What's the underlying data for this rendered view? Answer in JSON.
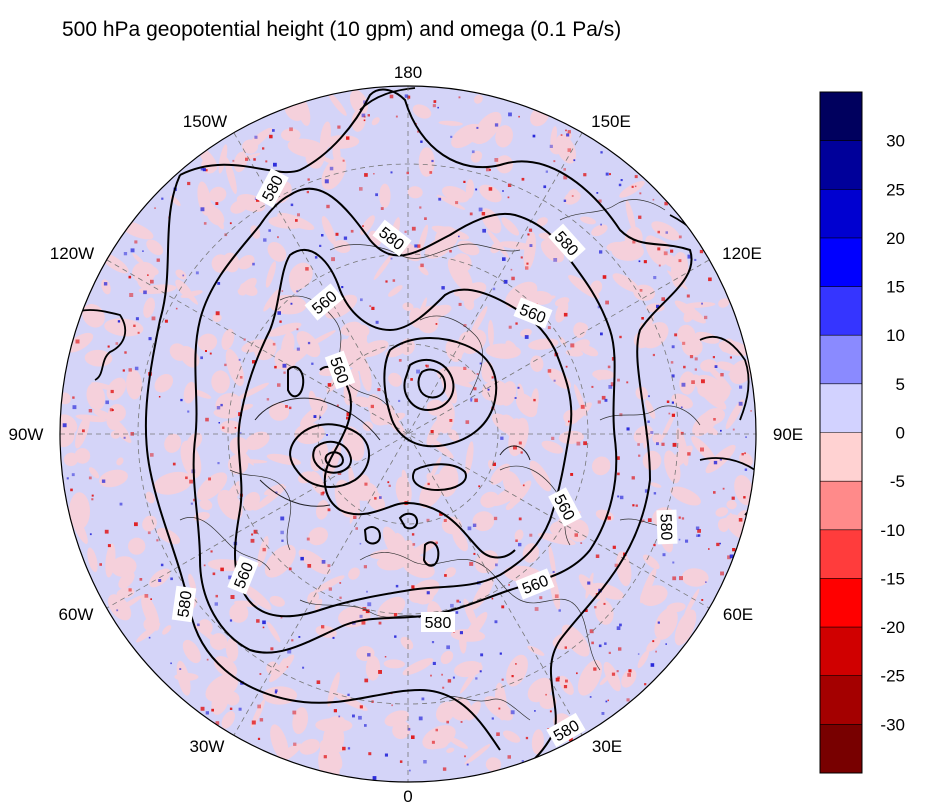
{
  "title": "500 hPa geopotential height (10 gpm) and omega (0.1 Pa/s)",
  "projection": "north-polar-stereographic",
  "longitude_labels": {
    "top": "180",
    "upper_left": "150W",
    "upper_right": "150E",
    "left_upper": "120W",
    "right_upper": "120E",
    "left": "90W",
    "right": "90E",
    "left_lower": "60W",
    "right_lower": "60E",
    "lower_left": "30W",
    "lower_right": "30E",
    "bottom": "0"
  },
  "contour_labels": [
    "580",
    "580",
    "580",
    "560",
    "560",
    "560",
    "560",
    "560",
    "560",
    "580",
    "580",
    "580"
  ],
  "colorbar": {
    "ticks": [
      "30",
      "25",
      "20",
      "15",
      "10",
      "5",
      "0",
      "-5",
      "-10",
      "-15",
      "-20",
      "-25",
      "-30"
    ],
    "colors": [
      "#00005e",
      "#00009a",
      "#0000d0",
      "#0000ff",
      "#3535ff",
      "#8a8aff",
      "#d2d2ff",
      "#ffd2d2",
      "#ff8a8a",
      "#ff3c3c",
      "#ff0000",
      "#d00000",
      "#a40000",
      "#780000"
    ]
  },
  "fill_colors": {
    "background": "#d4d4f8",
    "positive_light": "#fbcfd6",
    "red_speckle": "#e01010",
    "blue_speckle": "#2020d8"
  }
}
